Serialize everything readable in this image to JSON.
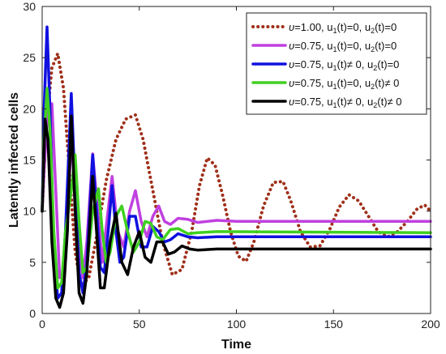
{
  "chart_data": {
    "type": "line",
    "title": "",
    "xlabel": "Time",
    "ylabel": "Latently infected cells",
    "xlim": [
      0,
      200
    ],
    "ylim": [
      0,
      30
    ],
    "xticks": [
      "0",
      "50",
      "100",
      "150",
      "200"
    ],
    "yticks": [
      "0",
      "5",
      "10",
      "15",
      "20",
      "25",
      "30"
    ],
    "grid": false,
    "legend_position": "top-right",
    "series": [
      {
        "name": "υ=1.00, u₁(t)=0, u₂(t)=0",
        "legend": {
          "greek": "υ",
          "pre": "=1.00, u",
          "s1": "1",
          "mid": "(t)=0, u",
          "s2": "2",
          "post": "(t)=0"
        },
        "color": "#A0301A",
        "style": "dotted",
        "points": [
          [
            0,
            10
          ],
          [
            2,
            18
          ],
          [
            5,
            24
          ],
          [
            8,
            25.4
          ],
          [
            11,
            22
          ],
          [
            14,
            14
          ],
          [
            17,
            6
          ],
          [
            20,
            2.7
          ],
          [
            24,
            3.5
          ],
          [
            28,
            7.5
          ],
          [
            33,
            13
          ],
          [
            38,
            17
          ],
          [
            43,
            19
          ],
          [
            48,
            19.4
          ],
          [
            52,
            17
          ],
          [
            57,
            12
          ],
          [
            62,
            7
          ],
          [
            67,
            3.8
          ],
          [
            72,
            4.3
          ],
          [
            77,
            8
          ],
          [
            81,
            12.5
          ],
          [
            85,
            15.2
          ],
          [
            89,
            14.5
          ],
          [
            93,
            11.5
          ],
          [
            97,
            8
          ],
          [
            101,
            5.6
          ],
          [
            105,
            5.1
          ],
          [
            109,
            7
          ],
          [
            114,
            10.5
          ],
          [
            119,
            12.8
          ],
          [
            124,
            12.9
          ],
          [
            128,
            11
          ],
          [
            133,
            8
          ],
          [
            138,
            6.5
          ],
          [
            143,
            6.6
          ],
          [
            148,
            8.2
          ],
          [
            153,
            10.4
          ],
          [
            158,
            11.6
          ],
          [
            163,
            11
          ],
          [
            168,
            9.5
          ],
          [
            173,
            8
          ],
          [
            178,
            7.5
          ],
          [
            183,
            8
          ],
          [
            188,
            9
          ],
          [
            193,
            10.2
          ],
          [
            197,
            10.6
          ],
          [
            200,
            10
          ]
        ]
      },
      {
        "name": "υ=0.75, u₁(t)=0, u₂(t)=0",
        "legend": {
          "greek": "υ",
          "pre": "=0.75, u",
          "s1": "1",
          "mid": "(t)=0, u",
          "s2": "2",
          "post": "(t)=0"
        },
        "color": "#C040E0",
        "style": "solid",
        "points": [
          [
            0,
            10
          ],
          [
            1,
            14
          ],
          [
            3,
            20
          ],
          [
            5,
            20.5
          ],
          [
            7,
            12
          ],
          [
            9,
            3.5
          ],
          [
            11,
            4
          ],
          [
            13,
            10
          ],
          [
            15,
            16.5
          ],
          [
            17,
            13
          ],
          [
            19,
            6
          ],
          [
            21,
            3.5
          ],
          [
            23,
            7
          ],
          [
            26,
            15.6
          ],
          [
            29,
            9
          ],
          [
            31,
            5
          ],
          [
            33,
            8.5
          ],
          [
            36,
            13.4
          ],
          [
            39,
            8
          ],
          [
            42,
            6.5
          ],
          [
            45,
            10
          ],
          [
            48,
            12
          ],
          [
            51,
            9
          ],
          [
            54,
            7.5
          ],
          [
            57,
            9.5
          ],
          [
            60,
            10.5
          ],
          [
            63,
            9
          ],
          [
            66,
            8.7
          ],
          [
            70,
            9.3
          ],
          [
            75,
            9.2
          ],
          [
            80,
            8.9
          ],
          [
            90,
            9.1
          ],
          [
            100,
            9
          ],
          [
            200,
            9
          ]
        ]
      },
      {
        "name": "υ=0.75, u₁(t)≠ 0, u₂(t)=0",
        "legend": {
          "greek": "υ",
          "pre": "=0.75, u",
          "s1": "1",
          "mid": "(t)≠ 0, u",
          "s2": "2",
          "post": "(t)=0"
        },
        "color": "#1010E0",
        "style": "solid",
        "points": [
          [
            0,
            10
          ],
          [
            1,
            20
          ],
          [
            2.5,
            28
          ],
          [
            4,
            20
          ],
          [
            6,
            6
          ],
          [
            8,
            1.5
          ],
          [
            10,
            2
          ],
          [
            12,
            8
          ],
          [
            15,
            21.5
          ],
          [
            17,
            12
          ],
          [
            19,
            4
          ],
          [
            21,
            2
          ],
          [
            23,
            5
          ],
          [
            26,
            15.5
          ],
          [
            28,
            10
          ],
          [
            30,
            4.5
          ],
          [
            32,
            4
          ],
          [
            34,
            8
          ],
          [
            36,
            12.5
          ],
          [
            38,
            8
          ],
          [
            40,
            5
          ],
          [
            42,
            5.5
          ],
          [
            45,
            9.5
          ],
          [
            48,
            9.5
          ],
          [
            51,
            6.5
          ],
          [
            54,
            6.5
          ],
          [
            57,
            8.5
          ],
          [
            60,
            8
          ],
          [
            63,
            7
          ],
          [
            66,
            7.2
          ],
          [
            70,
            7.8
          ],
          [
            75,
            7.5
          ],
          [
            80,
            7.4
          ],
          [
            90,
            7.5
          ],
          [
            200,
            7.5
          ]
        ]
      },
      {
        "name": "υ=0.75, u₁(t)=0, u₂(t)≠ 0",
        "legend": {
          "greek": "υ",
          "pre": "=0.75, u",
          "s1": "1",
          "mid": "(t)=0, u",
          "s2": "2",
          "post": "(t)≠ 0"
        },
        "color": "#40D020",
        "style": "solid",
        "points": [
          [
            0,
            10
          ],
          [
            1,
            17
          ],
          [
            2.5,
            22
          ],
          [
            4,
            18
          ],
          [
            6,
            8
          ],
          [
            8,
            2.5
          ],
          [
            10,
            3
          ],
          [
            12,
            8
          ],
          [
            15,
            12
          ],
          [
            17,
            15.5
          ],
          [
            19,
            9
          ],
          [
            21,
            4
          ],
          [
            23,
            4.5
          ],
          [
            26,
            10
          ],
          [
            29,
            12.2
          ],
          [
            31,
            8
          ],
          [
            33,
            5
          ],
          [
            35,
            6
          ],
          [
            38,
            9.5
          ],
          [
            41,
            10.5
          ],
          [
            44,
            8
          ],
          [
            47,
            6
          ],
          [
            50,
            7
          ],
          [
            53,
            9
          ],
          [
            56,
            8.8
          ],
          [
            59,
            7.5
          ],
          [
            62,
            7.2
          ],
          [
            66,
            8.2
          ],
          [
            70,
            8.3
          ],
          [
            75,
            7.8
          ],
          [
            80,
            7.9
          ],
          [
            90,
            8
          ],
          [
            200,
            7.9
          ]
        ]
      },
      {
        "name": "υ=0.75, u₁(t)≠ 0, u₂(t)≠ 0",
        "legend": {
          "greek": "υ",
          "pre": "=0.75, u",
          "s1": "1",
          "mid": "(t)≠ 0, u",
          "s2": "2",
          "post": "(t)≠ 0"
        },
        "color": "#000000",
        "style": "solid",
        "points": [
          [
            0,
            10
          ],
          [
            1.5,
            19
          ],
          [
            3,
            17
          ],
          [
            5,
            7
          ],
          [
            7,
            1.5
          ],
          [
            9,
            0.6
          ],
          [
            11,
            2
          ],
          [
            13,
            8
          ],
          [
            15,
            19.3
          ],
          [
            17,
            10
          ],
          [
            19,
            2
          ],
          [
            21,
            1
          ],
          [
            23,
            4
          ],
          [
            26,
            13.4
          ],
          [
            28,
            8
          ],
          [
            30,
            2.5
          ],
          [
            32,
            2.5
          ],
          [
            35,
            7
          ],
          [
            38,
            9.8
          ],
          [
            41,
            5
          ],
          [
            44,
            3.8
          ],
          [
            47,
            6.5
          ],
          [
            50,
            8
          ],
          [
            53,
            5.5
          ],
          [
            56,
            5
          ],
          [
            59,
            7
          ],
          [
            62,
            7
          ],
          [
            65,
            5.8
          ],
          [
            68,
            6
          ],
          [
            72,
            6.6
          ],
          [
            76,
            6.3
          ],
          [
            80,
            6.2
          ],
          [
            90,
            6.3
          ],
          [
            200,
            6.3
          ]
        ]
      }
    ]
  }
}
